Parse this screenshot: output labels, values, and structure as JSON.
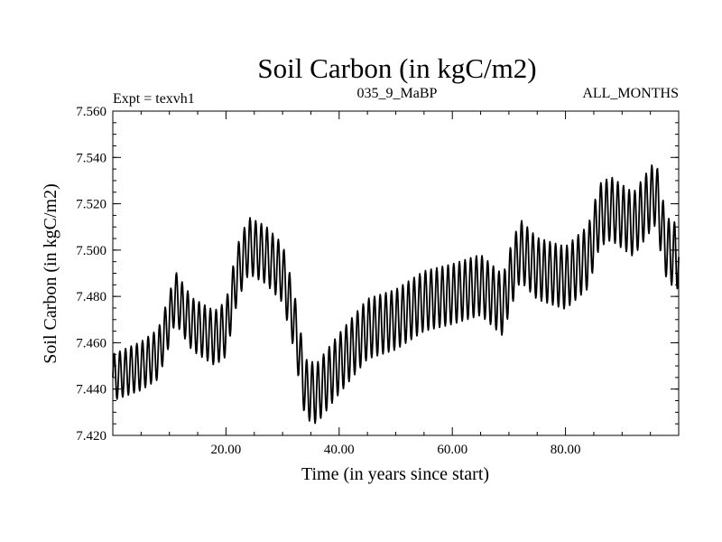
{
  "chart_data": {
    "type": "line",
    "title": "Soil Carbon (in kgC/m2)",
    "left_label": "Expt = texvh1",
    "center_label": "035_9_MaBP",
    "right_label": "ALL_MONTHS",
    "xlabel": "Time (in years since start)",
    "ylabel": "Soil Carbon (in kgC/m2)",
    "xlim": [
      0,
      100
    ],
    "ylim": [
      7.42,
      7.56
    ],
    "x_ticks": [
      20,
      40,
      60,
      80
    ],
    "x_tick_labels": [
      "20.00",
      "40.00",
      "60.00",
      "80.00"
    ],
    "y_ticks": [
      7.42,
      7.44,
      7.46,
      7.48,
      7.5,
      7.52,
      7.54,
      7.56
    ],
    "y_tick_labels": [
      "7.420",
      "7.440",
      "7.460",
      "7.480",
      "7.500",
      "7.520",
      "7.540",
      "7.560"
    ],
    "series_color": "#000000",
    "series": [
      {
        "name": "Soil Carbon",
        "sampling": "monthly, 12 samples per year, 0-100 years; value = baseline + seasonal amplitude * sin(2*pi*t)",
        "baseline_x": [
          0,
          5,
          8,
          10,
          11,
          14,
          18,
          20,
          22,
          24,
          27,
          30,
          32,
          34,
          36,
          40,
          45,
          50,
          55,
          60,
          65,
          69,
          70,
          72,
          75,
          80,
          84,
          86,
          88,
          92,
          95,
          96,
          97,
          98,
          100
        ],
        "baseline_y": [
          7.445,
          7.45,
          7.455,
          7.47,
          7.48,
          7.468,
          7.462,
          7.466,
          7.49,
          7.502,
          7.498,
          7.49,
          7.47,
          7.44,
          7.438,
          7.451,
          7.466,
          7.47,
          7.478,
          7.481,
          7.485,
          7.476,
          7.486,
          7.5,
          7.492,
          7.488,
          7.497,
          7.515,
          7.518,
          7.511,
          7.522,
          7.525,
          7.51,
          7.5,
          7.497
        ],
        "amplitude_x": [
          0,
          20,
          35,
          60,
          100
        ],
        "amplitude_y": [
          0.01,
          0.012,
          0.013,
          0.013,
          0.014
        ]
      }
    ]
  }
}
